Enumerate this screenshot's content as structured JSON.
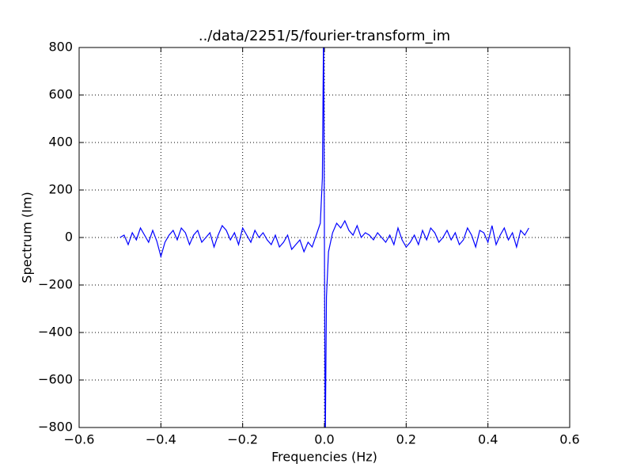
{
  "chart_data": {
    "type": "line",
    "title": "../data/2251/5/fourier-transform_im",
    "xlabel": "Frequencies (Hz)",
    "ylabel": "Spectrum (Im)",
    "x": [
      -0.5,
      -0.49,
      -0.48,
      -0.47,
      -0.46,
      -0.45,
      -0.44,
      -0.43,
      -0.42,
      -0.41,
      -0.4,
      -0.39,
      -0.38,
      -0.37,
      -0.36,
      -0.35,
      -0.34,
      -0.33,
      -0.32,
      -0.31,
      -0.3,
      -0.29,
      -0.28,
      -0.27,
      -0.26,
      -0.25,
      -0.24,
      -0.23,
      -0.22,
      -0.21,
      -0.2,
      -0.19,
      -0.18,
      -0.17,
      -0.16,
      -0.15,
      -0.14,
      -0.13,
      -0.12,
      -0.11,
      -0.1,
      -0.09,
      -0.08,
      -0.07,
      -0.06,
      -0.05,
      -0.04,
      -0.03,
      -0.02,
      -0.01,
      -0.005,
      -0.002,
      0.002,
      0.005,
      0.01,
      0.02,
      0.03,
      0.04,
      0.05,
      0.06,
      0.07,
      0.08,
      0.09,
      0.1,
      0.11,
      0.12,
      0.13,
      0.14,
      0.15,
      0.16,
      0.17,
      0.18,
      0.19,
      0.2,
      0.21,
      0.22,
      0.23,
      0.24,
      0.25,
      0.26,
      0.27,
      0.28,
      0.29,
      0.3,
      0.31,
      0.32,
      0.33,
      0.34,
      0.35,
      0.36,
      0.37,
      0.38,
      0.39,
      0.4,
      0.41,
      0.42,
      0.43,
      0.44,
      0.45,
      0.46,
      0.47,
      0.48,
      0.49,
      0.5
    ],
    "series": [
      {
        "name": "Spectrum (Im)",
        "color": "#0000ff",
        "values": [
          0,
          10,
          -30,
          20,
          -10,
          40,
          10,
          -20,
          30,
          -15,
          -80,
          -20,
          10,
          30,
          -10,
          40,
          20,
          -30,
          10,
          30,
          -20,
          0,
          20,
          -40,
          10,
          50,
          30,
          -10,
          20,
          -30,
          40,
          10,
          -20,
          30,
          0,
          20,
          -10,
          -30,
          10,
          -40,
          -20,
          10,
          -50,
          -30,
          -10,
          -60,
          -20,
          -40,
          10,
          60,
          250,
          900,
          -900,
          -250,
          -60,
          20,
          60,
          40,
          70,
          30,
          10,
          50,
          0,
          20,
          10,
          -10,
          20,
          0,
          -20,
          10,
          -30,
          40,
          -10,
          -40,
          -20,
          10,
          -30,
          30,
          -10,
          40,
          20,
          -20,
          0,
          30,
          -10,
          20,
          -30,
          -10,
          40,
          10,
          -40,
          30,
          20,
          -20,
          50,
          -30,
          10,
          40,
          -10,
          20,
          -40,
          30,
          10,
          40
        ]
      }
    ],
    "xlim": [
      -0.6,
      0.6
    ],
    "xticks": [
      {
        "value": -0.6,
        "label": "−0.6"
      },
      {
        "value": -0.4,
        "label": "−0.4"
      },
      {
        "value": -0.2,
        "label": "−0.2"
      },
      {
        "value": 0,
        "label": "0.0"
      },
      0.2,
      0.4,
      0.6
    ],
    "ylim": [
      -800,
      800
    ],
    "yticks": [
      {
        "value": -800,
        "label": "−800"
      },
      {
        "value": -600,
        "label": "−600"
      },
      {
        "value": -400,
        "label": "−400"
      },
      {
        "value": -200,
        "label": "−200"
      },
      0,
      200,
      400,
      600,
      800
    ],
    "grid": true
  }
}
